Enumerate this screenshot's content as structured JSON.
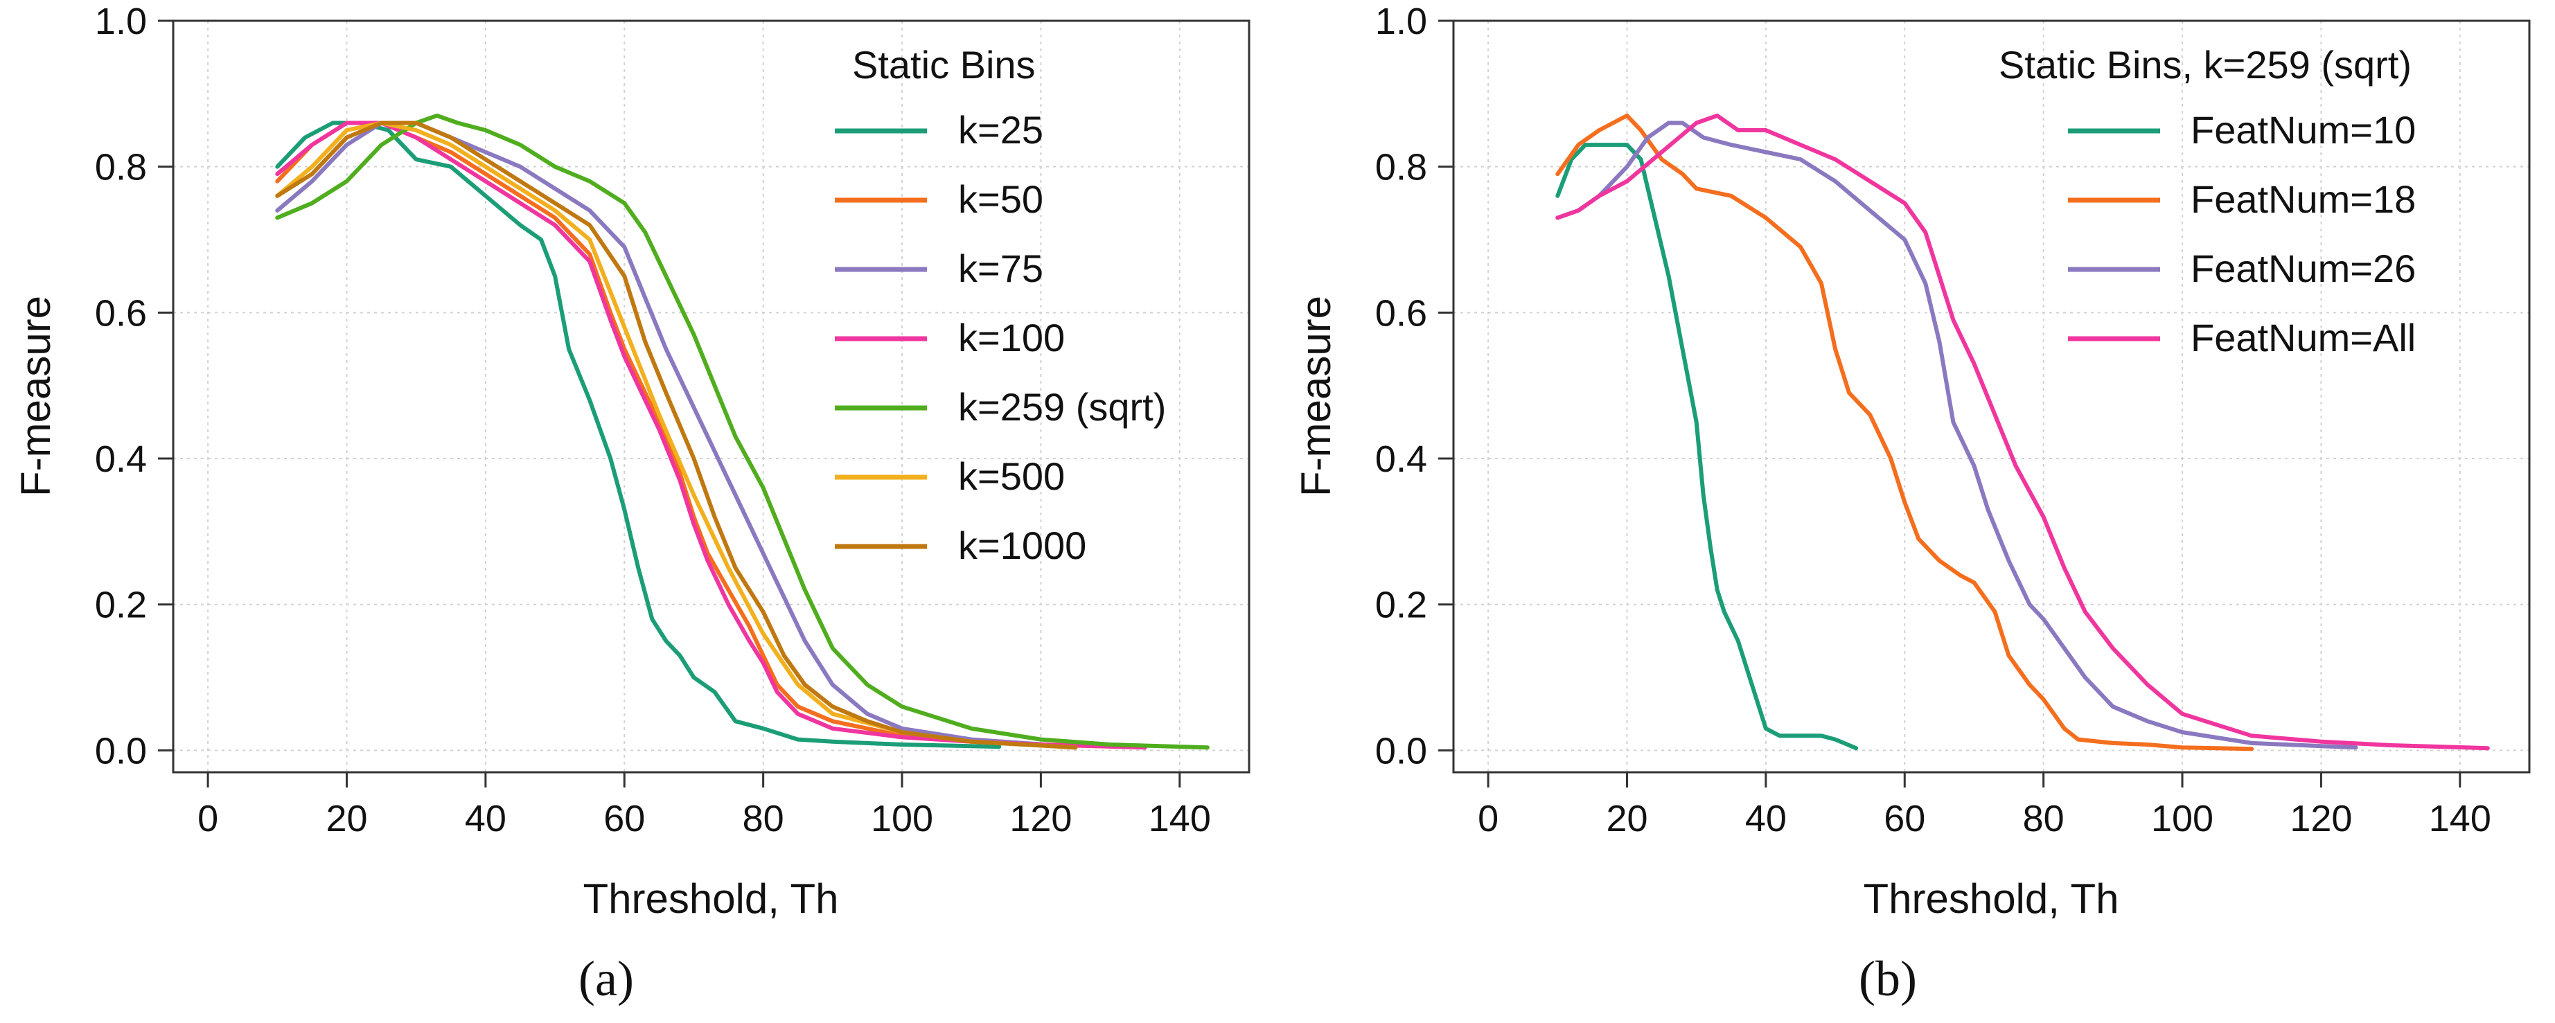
{
  "chart_data": [
    {
      "type": "line",
      "panel_label": "(a)",
      "xlabel": "Threshold, Th",
      "ylabel": "F-measure",
      "xlim": [
        -5,
        150
      ],
      "ylim": [
        -0.03,
        1.0
      ],
      "xticks": [
        0,
        20,
        40,
        60,
        80,
        100,
        120,
        140
      ],
      "xtick_labels": [
        "0",
        "20",
        "40",
        "60",
        "80",
        "100",
        "120",
        "140"
      ],
      "yticks": [
        0.0,
        0.2,
        0.4,
        0.6,
        0.8,
        1.0
      ],
      "ytick_labels": [
        "0.0",
        "0.2",
        "0.4",
        "0.6",
        "0.8",
        "1.0"
      ],
      "grid": true,
      "legend_title": "Static Bins",
      "legend_position": "top-right",
      "series": [
        {
          "name": "k=25",
          "color": "#1b9e77",
          "x": [
            10,
            14,
            18,
            22,
            26,
            30,
            35,
            40,
            45,
            48,
            50,
            52,
            55,
            58,
            60,
            62,
            64,
            66,
            68,
            70,
            73,
            76,
            80,
            85,
            90,
            100,
            114
          ],
          "y": [
            0.8,
            0.84,
            0.86,
            0.86,
            0.85,
            0.81,
            0.8,
            0.76,
            0.72,
            0.7,
            0.65,
            0.55,
            0.48,
            0.4,
            0.33,
            0.25,
            0.18,
            0.15,
            0.13,
            0.1,
            0.08,
            0.04,
            0.03,
            0.015,
            0.012,
            0.008,
            0.005
          ]
        },
        {
          "name": "k=50",
          "color": "#f46e1e",
          "x": [
            10,
            15,
            20,
            25,
            30,
            35,
            40,
            45,
            50,
            55,
            58,
            60,
            62,
            65,
            68,
            70,
            72,
            75,
            78,
            80,
            82,
            85,
            90,
            100,
            110,
            120,
            135
          ],
          "y": [
            0.78,
            0.83,
            0.86,
            0.86,
            0.84,
            0.82,
            0.79,
            0.76,
            0.73,
            0.68,
            0.6,
            0.55,
            0.51,
            0.45,
            0.38,
            0.32,
            0.27,
            0.22,
            0.17,
            0.13,
            0.09,
            0.06,
            0.04,
            0.02,
            0.012,
            0.008,
            0.004
          ]
        },
        {
          "name": "k=75",
          "color": "#8a79c0",
          "x": [
            10,
            15,
            20,
            25,
            30,
            35,
            40,
            45,
            50,
            55,
            60,
            63,
            66,
            70,
            73,
            76,
            80,
            83,
            86,
            90,
            95,
            100,
            110,
            125
          ],
          "y": [
            0.74,
            0.78,
            0.83,
            0.86,
            0.86,
            0.84,
            0.82,
            0.8,
            0.77,
            0.74,
            0.69,
            0.62,
            0.55,
            0.47,
            0.41,
            0.35,
            0.27,
            0.21,
            0.15,
            0.09,
            0.05,
            0.03,
            0.015,
            0.005
          ]
        },
        {
          "name": "k=100",
          "color": "#f0369e",
          "x": [
            10,
            15,
            20,
            25,
            30,
            35,
            40,
            45,
            50,
            55,
            58,
            60,
            62,
            65,
            68,
            70,
            72,
            75,
            78,
            80,
            82,
            85,
            90,
            100,
            110,
            120,
            135
          ],
          "y": [
            0.79,
            0.83,
            0.86,
            0.86,
            0.84,
            0.81,
            0.78,
            0.75,
            0.72,
            0.67,
            0.59,
            0.54,
            0.5,
            0.44,
            0.37,
            0.31,
            0.26,
            0.2,
            0.15,
            0.12,
            0.08,
            0.05,
            0.03,
            0.018,
            0.012,
            0.008,
            0.004
          ]
        },
        {
          "name": "k=259 (sqrt)",
          "color": "#4fad1e",
          "x": [
            10,
            15,
            20,
            25,
            30,
            33,
            36,
            40,
            45,
            50,
            55,
            60,
            63,
            66,
            70,
            73,
            76,
            80,
            83,
            86,
            90,
            95,
            100,
            110,
            120,
            130,
            144
          ],
          "y": [
            0.73,
            0.75,
            0.78,
            0.83,
            0.86,
            0.87,
            0.86,
            0.85,
            0.83,
            0.8,
            0.78,
            0.75,
            0.71,
            0.65,
            0.57,
            0.5,
            0.43,
            0.36,
            0.29,
            0.22,
            0.14,
            0.09,
            0.06,
            0.03,
            0.015,
            0.008,
            0.004
          ]
        },
        {
          "name": "k=500",
          "color": "#f2b01e",
          "x": [
            10,
            15,
            20,
            25,
            30,
            35,
            40,
            45,
            50,
            55,
            60,
            65,
            70,
            75,
            80,
            85,
            90,
            100,
            110,
            125
          ],
          "y": [
            0.76,
            0.8,
            0.85,
            0.86,
            0.85,
            0.83,
            0.8,
            0.77,
            0.74,
            0.7,
            0.58,
            0.46,
            0.35,
            0.25,
            0.16,
            0.09,
            0.05,
            0.025,
            0.012,
            0.004
          ]
        },
        {
          "name": "k=1000",
          "color": "#c07810",
          "x": [
            10,
            15,
            20,
            25,
            30,
            35,
            40,
            45,
            50,
            55,
            60,
            63,
            66,
            70,
            73,
            76,
            80,
            83,
            86,
            90,
            95,
            100,
            110,
            125
          ],
          "y": [
            0.76,
            0.79,
            0.84,
            0.86,
            0.86,
            0.84,
            0.81,
            0.78,
            0.75,
            0.72,
            0.65,
            0.56,
            0.49,
            0.4,
            0.32,
            0.25,
            0.19,
            0.13,
            0.09,
            0.06,
            0.04,
            0.025,
            0.012,
            0.004
          ]
        }
      ]
    },
    {
      "type": "line",
      "panel_label": "(b)",
      "xlabel": "Threshold, Th",
      "ylabel": "F-measure",
      "xlim": [
        -5,
        150
      ],
      "ylim": [
        -0.03,
        1.0
      ],
      "xticks": [
        0,
        20,
        40,
        60,
        80,
        100,
        120,
        140
      ],
      "xtick_labels": [
        "0",
        "20",
        "40",
        "60",
        "80",
        "100",
        "120",
        "140"
      ],
      "yticks": [
        0.0,
        0.2,
        0.4,
        0.6,
        0.8,
        1.0
      ],
      "ytick_labels": [
        "0.0",
        "0.2",
        "0.4",
        "0.6",
        "0.8",
        "1.0"
      ],
      "grid": true,
      "legend_title": "Static Bins, k=259 (sqrt)",
      "legend_position": "top-right",
      "series": [
        {
          "name": "FeatNum=10",
          "color": "#1b9e77",
          "x": [
            10,
            12,
            14,
            16,
            18,
            20,
            22,
            24,
            26,
            28,
            30,
            31,
            32,
            33,
            34,
            36,
            38,
            40,
            42,
            45,
            48,
            50,
            53
          ],
          "y": [
            0.76,
            0.81,
            0.83,
            0.83,
            0.83,
            0.83,
            0.81,
            0.73,
            0.65,
            0.55,
            0.45,
            0.35,
            0.28,
            0.22,
            0.19,
            0.15,
            0.09,
            0.03,
            0.02,
            0.02,
            0.02,
            0.015,
            0.003
          ]
        },
        {
          "name": "FeatNum=18",
          "color": "#f46e1e",
          "x": [
            10,
            13,
            16,
            20,
            22,
            25,
            28,
            30,
            35,
            40,
            45,
            48,
            50,
            52,
            55,
            58,
            60,
            62,
            65,
            68,
            70,
            73,
            75,
            78,
            80,
            83,
            85,
            90,
            95,
            100,
            110
          ],
          "y": [
            0.79,
            0.83,
            0.85,
            0.87,
            0.85,
            0.81,
            0.79,
            0.77,
            0.76,
            0.73,
            0.69,
            0.64,
            0.55,
            0.49,
            0.46,
            0.4,
            0.34,
            0.29,
            0.26,
            0.24,
            0.23,
            0.19,
            0.13,
            0.09,
            0.07,
            0.03,
            0.015,
            0.01,
            0.008,
            0.004,
            0.002
          ]
        },
        {
          "name": "FeatNum=26",
          "color": "#8a79c0",
          "x": [
            10,
            13,
            16,
            20,
            23,
            26,
            28,
            31,
            35,
            40,
            45,
            50,
            55,
            60,
            63,
            65,
            67,
            70,
            72,
            75,
            78,
            80,
            83,
            86,
            90,
            95,
            100,
            110,
            125
          ],
          "y": [
            0.73,
            0.74,
            0.76,
            0.8,
            0.84,
            0.86,
            0.86,
            0.84,
            0.83,
            0.82,
            0.81,
            0.78,
            0.74,
            0.7,
            0.64,
            0.56,
            0.45,
            0.39,
            0.33,
            0.26,
            0.2,
            0.18,
            0.14,
            0.1,
            0.06,
            0.04,
            0.025,
            0.01,
            0.004
          ]
        },
        {
          "name": "FeatNum=All",
          "color": "#f0369e",
          "x": [
            10,
            13,
            16,
            20,
            25,
            30,
            33,
            36,
            40,
            45,
            50,
            55,
            60,
            63,
            65,
            67,
            70,
            73,
            76,
            80,
            83,
            86,
            90,
            95,
            100,
            110,
            120,
            130,
            144
          ],
          "y": [
            0.73,
            0.74,
            0.76,
            0.78,
            0.82,
            0.86,
            0.87,
            0.85,
            0.85,
            0.83,
            0.81,
            0.78,
            0.75,
            0.71,
            0.65,
            0.59,
            0.53,
            0.46,
            0.39,
            0.32,
            0.25,
            0.19,
            0.14,
            0.09,
            0.05,
            0.02,
            0.012,
            0.007,
            0.003
          ]
        }
      ]
    }
  ]
}
